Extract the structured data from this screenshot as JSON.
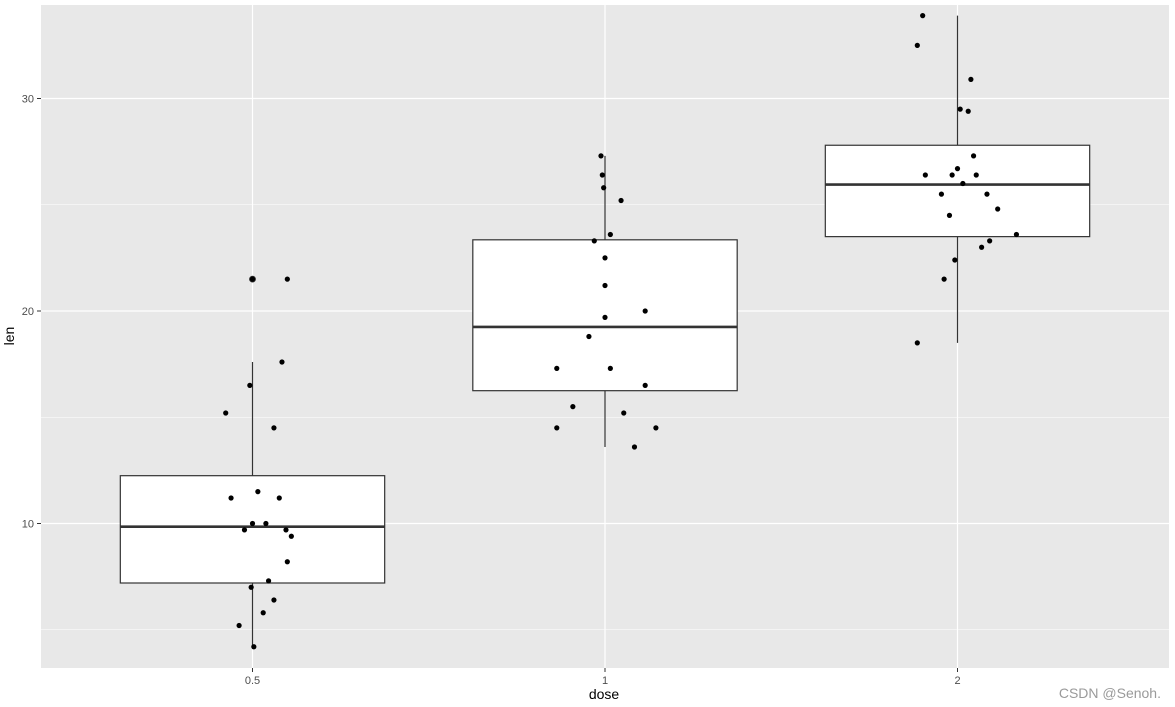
{
  "chart_data": {
    "type": "boxplot",
    "xlabel": "dose",
    "ylabel": "len",
    "categories": [
      "0.5",
      "1",
      "2"
    ],
    "y_ticks": [
      10,
      20,
      30
    ],
    "ylim": [
      3.2,
      34.4
    ],
    "grid": true,
    "panel_background": "#e8e8e8",
    "grid_color": "#ffffff",
    "box_fill": "#ffffff",
    "box_stroke": "#333333",
    "point_color": "#000000",
    "boxes": [
      {
        "category": "0.5",
        "lower_whisker": 4.2,
        "q1": 7.2,
        "median": 9.85,
        "q3": 12.25,
        "upper_whisker": 17.6,
        "outliers": [
          21.5
        ]
      },
      {
        "category": "1",
        "lower_whisker": 13.6,
        "q1": 16.25,
        "median": 19.25,
        "q3": 23.35,
        "upper_whisker": 27.3,
        "outliers": []
      },
      {
        "category": "2",
        "lower_whisker": 18.5,
        "q1": 23.5,
        "median": 25.95,
        "q3": 27.8,
        "upper_whisker": 33.9,
        "outliers": []
      }
    ],
    "points": [
      {
        "x": 0.4,
        "y": 15.2
      },
      {
        "x": 0.42,
        "y": 11.2
      },
      {
        "x": 0.45,
        "y": 5.2
      },
      {
        "x": 0.47,
        "y": 9.7
      },
      {
        "x": 0.49,
        "y": 16.5
      },
      {
        "x": 0.495,
        "y": 7.0
      },
      {
        "x": 0.5,
        "y": 21.5
      },
      {
        "x": 0.5,
        "y": 10.0
      },
      {
        "x": 0.505,
        "y": 4.2
      },
      {
        "x": 0.52,
        "y": 11.5
      },
      {
        "x": 0.54,
        "y": 5.8
      },
      {
        "x": 0.55,
        "y": 10.0
      },
      {
        "x": 0.56,
        "y": 7.3
      },
      {
        "x": 0.58,
        "y": 6.4
      },
      {
        "x": 0.58,
        "y": 14.5
      },
      {
        "x": 0.6,
        "y": 11.2
      },
      {
        "x": 0.61,
        "y": 17.6
      },
      {
        "x": 0.625,
        "y": 9.7
      },
      {
        "x": 0.63,
        "y": 21.5
      },
      {
        "x": 0.63,
        "y": 8.2
      },
      {
        "x": 0.645,
        "y": 9.4
      },
      {
        "x": 0.82,
        "y": 17.3
      },
      {
        "x": 0.82,
        "y": 14.5
      },
      {
        "x": 0.88,
        "y": 15.5
      },
      {
        "x": 0.94,
        "y": 18.8
      },
      {
        "x": 0.96,
        "y": 23.3
      },
      {
        "x": 0.985,
        "y": 27.3
      },
      {
        "x": 0.99,
        "y": 26.4
      },
      {
        "x": 0.995,
        "y": 25.8
      },
      {
        "x": 1.0,
        "y": 22.5
      },
      {
        "x": 1.0,
        "y": 21.2
      },
      {
        "x": 1.02,
        "y": 17.3
      },
      {
        "x": 1.0,
        "y": 19.7
      },
      {
        "x": 1.02,
        "y": 23.6
      },
      {
        "x": 1.06,
        "y": 25.2
      },
      {
        "x": 1.07,
        "y": 15.2
      },
      {
        "x": 1.11,
        "y": 13.6
      },
      {
        "x": 1.15,
        "y": 20.0
      },
      {
        "x": 1.15,
        "y": 16.5
      },
      {
        "x": 1.19,
        "y": 14.5
      },
      {
        "x": 1.85,
        "y": 32.5
      },
      {
        "x": 1.85,
        "y": 18.5
      },
      {
        "x": 1.87,
        "y": 33.9
      },
      {
        "x": 1.88,
        "y": 26.4
      },
      {
        "x": 1.94,
        "y": 25.5
      },
      {
        "x": 1.95,
        "y": 21.5
      },
      {
        "x": 1.97,
        "y": 24.5
      },
      {
        "x": 1.98,
        "y": 26.4
      },
      {
        "x": 1.99,
        "y": 22.4
      },
      {
        "x": 2.0,
        "y": 26.7
      },
      {
        "x": 2.01,
        "y": 29.5
      },
      {
        "x": 2.02,
        "y": 26.0
      },
      {
        "x": 2.04,
        "y": 29.4
      },
      {
        "x": 2.05,
        "y": 30.9
      },
      {
        "x": 2.06,
        "y": 27.3
      },
      {
        "x": 2.07,
        "y": 26.4
      },
      {
        "x": 2.09,
        "y": 23.0
      },
      {
        "x": 2.11,
        "y": 25.5
      },
      {
        "x": 2.12,
        "y": 23.3
      },
      {
        "x": 2.15,
        "y": 24.8
      },
      {
        "x": 2.22,
        "y": 23.6
      }
    ]
  },
  "watermark": "CSDN @Senoh."
}
